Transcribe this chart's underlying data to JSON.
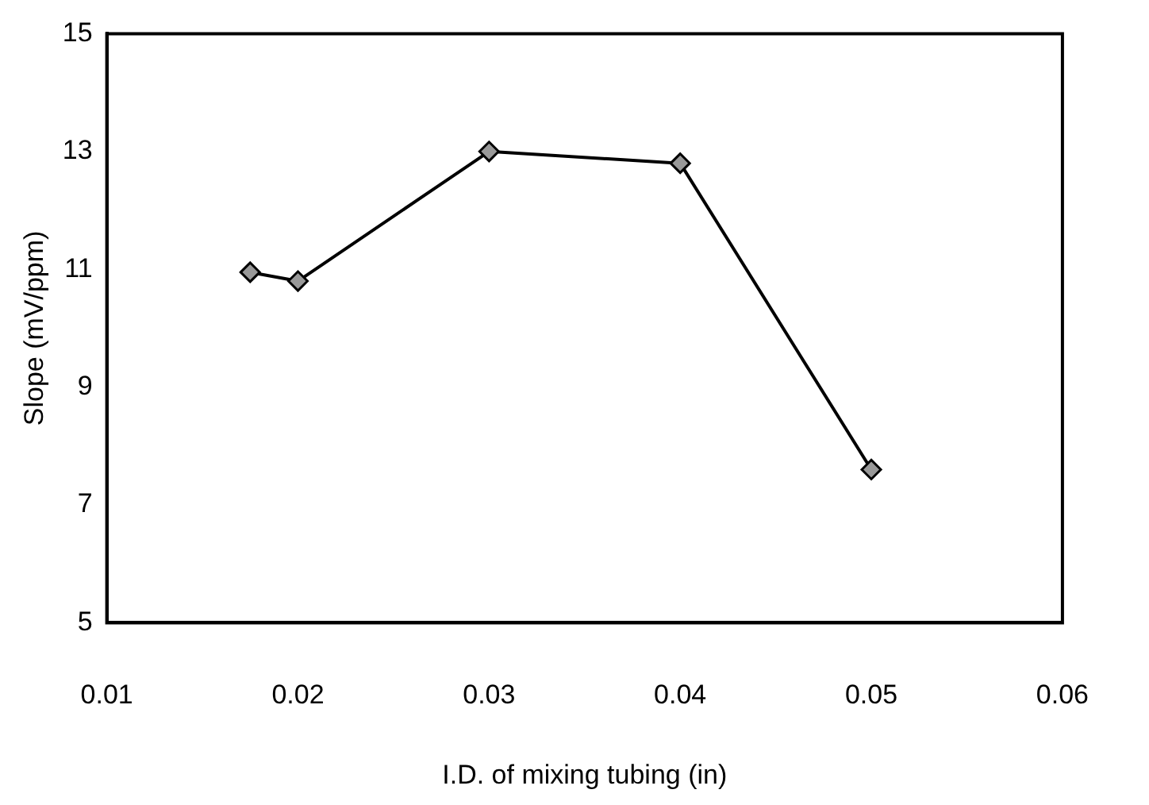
{
  "chart_data": {
    "type": "line",
    "xlabel": "I.D. of mixing tubing (in)",
    "ylabel": "Slope (mV/ppm)",
    "x": [
      0.0175,
      0.02,
      0.03,
      0.04,
      0.05
    ],
    "series": [
      {
        "color": "#000000",
        "values": [
          10.95,
          10.8,
          13.0,
          12.8,
          7.6
        ]
      }
    ],
    "xlim": [
      0.01,
      0.06
    ],
    "xticks": [
      0.01,
      0.02,
      0.03,
      0.04,
      0.05,
      0.06
    ],
    "ylim": [
      5,
      15
    ],
    "yticks": [
      5,
      7,
      9,
      11,
      13,
      15
    ],
    "grid": false,
    "legend": false,
    "marker": "diamond",
    "line_style": "solid"
  }
}
